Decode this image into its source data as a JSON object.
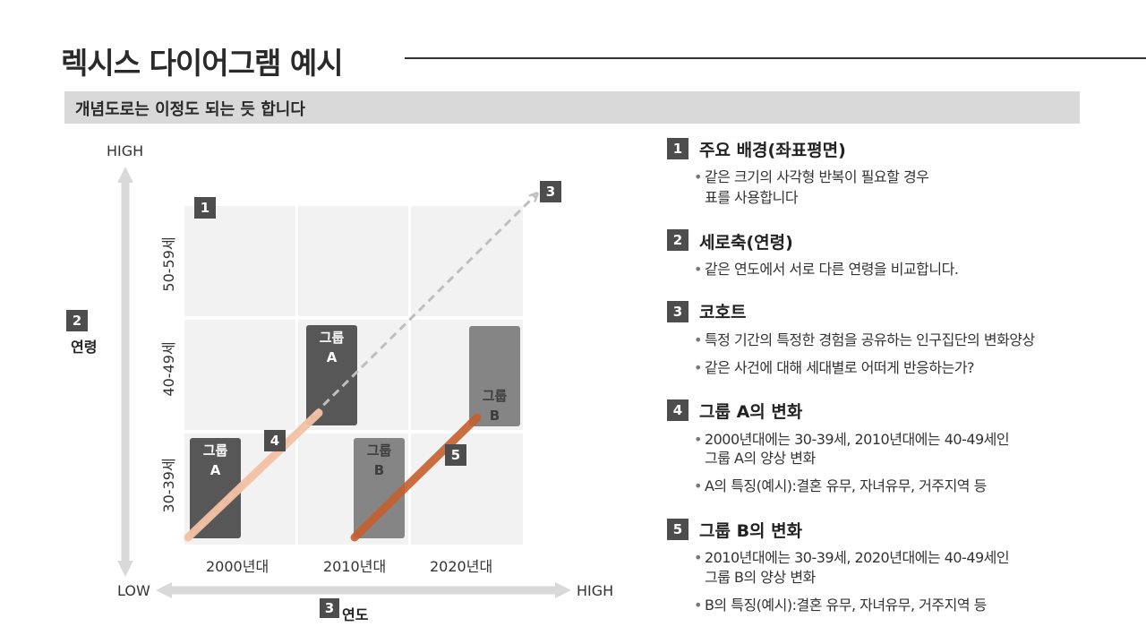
{
  "title": "렉시스 다이어그램 예시",
  "subtitle": "개념도로는 이정도 되는 듯 합니다",
  "diagram": {
    "y_axis": {
      "high": "HIGH",
      "low": "LOW",
      "badge": "2",
      "label": "연령"
    },
    "x_axis": {
      "high": "HIGH",
      "badge": "3",
      "label": "연도"
    },
    "rows": [
      "50-59세",
      "40-49세",
      "30-39세"
    ],
    "columns": [
      "2000년대",
      "2010년대",
      "2020년대"
    ],
    "markers": [
      "1",
      "3",
      "4",
      "5"
    ],
    "groups": {
      "a_low": [
        "그룹",
        "A"
      ],
      "a_high": [
        "그룹",
        "A"
      ],
      "b_low": [
        "그룹",
        "B"
      ],
      "b_high": [
        "그룹",
        "B"
      ]
    },
    "colors": {
      "group_a_line": "#f4c2a4",
      "group_b_line": "#c65f2e",
      "cohort_arrow": "#bfbfbf",
      "cell": "#f2f2f2",
      "box_dark": "#575757",
      "box_gray": "#858585"
    }
  },
  "sections": [
    {
      "num": "1",
      "title": "주요 배경(좌표평면)",
      "bullets": [
        "같은 크기의 사각형 반복이 필요할 경우"
      ],
      "continuation": "표를 사용합니다"
    },
    {
      "num": "2",
      "title": "세로축(연령)",
      "bullets": [
        "같은 연도에서 서로 다른 연령을 비교합니다."
      ]
    },
    {
      "num": "3",
      "title": "코호트",
      "bullets": [
        "특정 기간의 특정한 경험을 공유하는 인구집단의 변화양상",
        "같은 사건에 대해 세대별로 어떠게 반응하는가?"
      ]
    },
    {
      "num": "4",
      "title": "그룹 A의 변화",
      "bullets": [
        "2000년대에는 30-39세, 2010년대에는 40-49세인",
        "A의 특징(예시):결혼 유무, 자녀유무, 거주지역 등"
      ],
      "continuation": "그룹 A의 양상 변화"
    },
    {
      "num": "5",
      "title": "그룹 B의 변화",
      "bullets": [
        "2010년대에는 30-39세, 2020년대에는 40-49세인",
        "B의 특징(예시):결혼 유무, 자녀유무, 거주지역 등"
      ],
      "continuation": "그룹 B의 양상 변화"
    }
  ]
}
